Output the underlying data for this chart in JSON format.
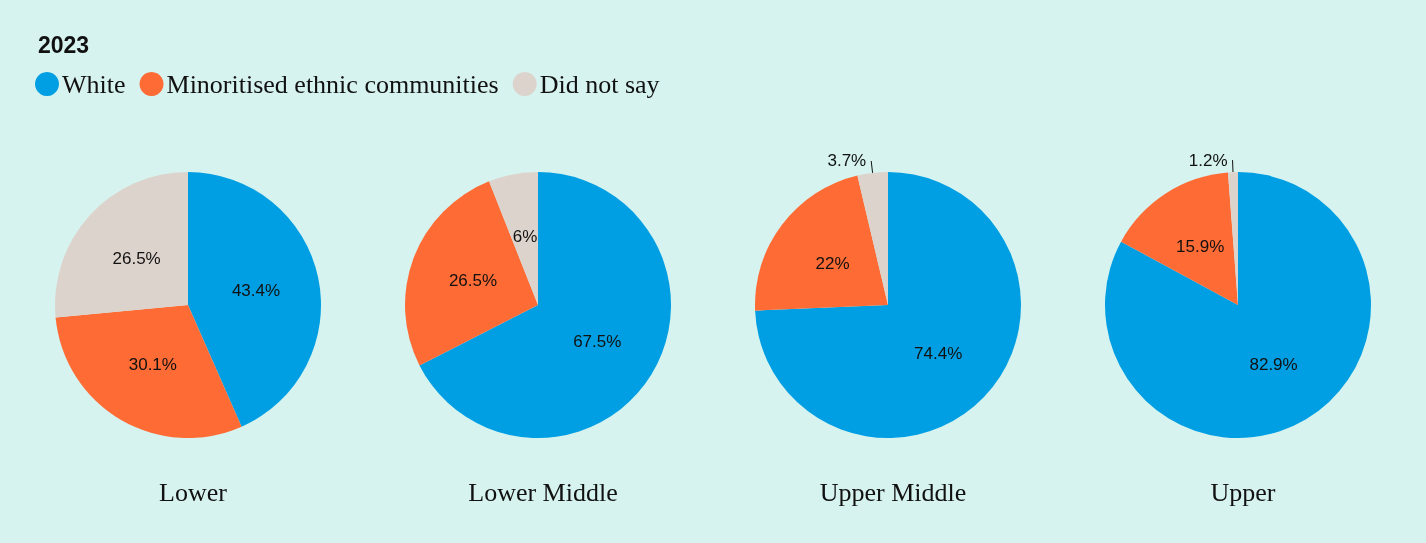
{
  "chart_data": {
    "type": "pie",
    "title": "2023",
    "legend": "top left",
    "categories": [
      "White",
      "Minoritised ethnic communities",
      "Did not say"
    ],
    "colors": [
      "#009fe3",
      "#ff6b35",
      "#ddd3cd"
    ],
    "series": [
      {
        "name": "Lower",
        "values": [
          43.4,
          30.1,
          26.5
        ],
        "value_labels": [
          "43.4%",
          "30.1%",
          "26.5%"
        ]
      },
      {
        "name": "Lower Middle",
        "values": [
          67.5,
          26.5,
          6
        ],
        "value_labels": [
          "67.5%",
          "26.5%",
          "6%"
        ]
      },
      {
        "name": "Upper Middle",
        "values": [
          74.4,
          22,
          3.7
        ],
        "value_labels": [
          "74.4%",
          "22%",
          "3.7%"
        ]
      },
      {
        "name": "Upper",
        "values": [
          82.9,
          15.9,
          1.2
        ],
        "value_labels": [
          "82.9%",
          "15.9%",
          "1.2%"
        ]
      }
    ]
  }
}
